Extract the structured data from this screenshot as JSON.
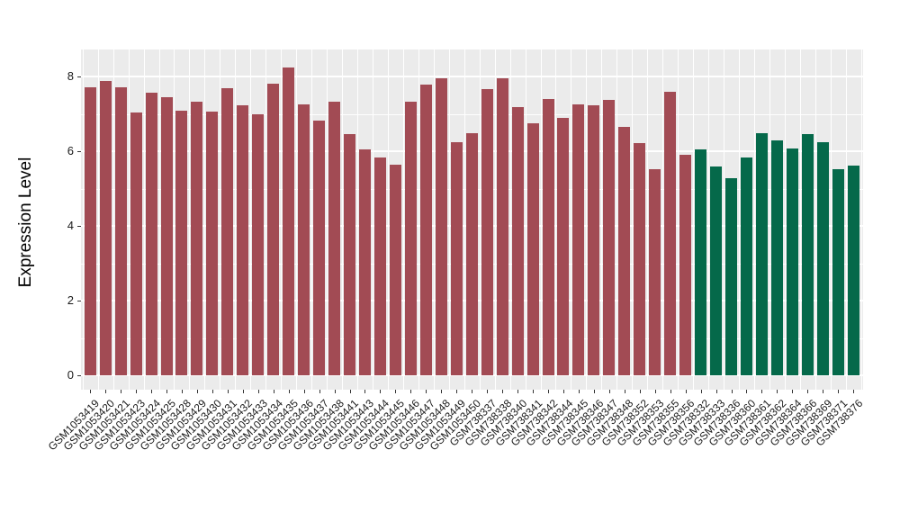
{
  "figure": {
    "title": "",
    "background_color": "#FFFFFF",
    "panel_background_color": "#EBEBEB",
    "gridline_color": "#FFFFFF",
    "axis_tick_color": "#333333",
    "axis_text_color": "#1A1A1A"
  },
  "chart_data": {
    "type": "bar",
    "title": "",
    "xlabel": "",
    "ylabel": "Expression Level",
    "ylim": [
      0,
      8.7
    ],
    "yticks": [
      0,
      2,
      4,
      6,
      8
    ],
    "grid": "white major gridlines at even values, minor at odd values, vertical lines between bars, on grey panel",
    "legend_position": "none",
    "group_colors": {
      "red": "#A24B54",
      "green": "#05694A"
    },
    "categories": [
      "GSM1053419",
      "GSM1053420",
      "GSM1053421",
      "GSM1053423",
      "GSM1053424",
      "GSM1053425",
      "GSM1053428",
      "GSM1053429",
      "GSM1053430",
      "GSM1053431",
      "GSM1053432",
      "GSM1053433",
      "GSM1053434",
      "GSM1053435",
      "GSM1053436",
      "GSM1053437",
      "GSM1053438",
      "GSM1053441",
      "GSM1053443",
      "GSM1053444",
      "GSM1053445",
      "GSM1053446",
      "GSM1053447",
      "GSM1053448",
      "GSM1053449",
      "GSM1053450",
      "GSM738337",
      "GSM738338",
      "GSM738340",
      "GSM738341",
      "GSM738342",
      "GSM738344",
      "GSM738345",
      "GSM738346",
      "GSM738347",
      "GSM738348",
      "GSM738352",
      "GSM738353",
      "GSM738355",
      "GSM738356",
      "GSM738332",
      "GSM738333",
      "GSM738336",
      "GSM738360",
      "GSM738361",
      "GSM738362",
      "GSM738364",
      "GSM738366",
      "GSM738369",
      "GSM738371",
      "GSM738376"
    ],
    "values": [
      7.72,
      7.87,
      7.7,
      7.04,
      7.56,
      7.45,
      7.09,
      7.32,
      7.06,
      7.68,
      7.23,
      7.0,
      7.8,
      8.25,
      7.25,
      6.81,
      7.33,
      6.46,
      6.05,
      5.83,
      5.65,
      7.32,
      7.79,
      7.96,
      6.23,
      6.47,
      7.66,
      7.94,
      7.18,
      6.74,
      7.4,
      6.89,
      7.25,
      7.22,
      7.38,
      6.66,
      6.21,
      5.53,
      7.6,
      5.91,
      6.05,
      5.59,
      5.27,
      5.83,
      6.47,
      6.29,
      6.07,
      6.45,
      6.25,
      5.51,
      5.61
    ],
    "bar_groups": [
      "red",
      "red",
      "red",
      "red",
      "red",
      "red",
      "red",
      "red",
      "red",
      "red",
      "red",
      "red",
      "red",
      "red",
      "red",
      "red",
      "red",
      "red",
      "red",
      "red",
      "red",
      "red",
      "red",
      "red",
      "red",
      "red",
      "red",
      "red",
      "red",
      "red",
      "red",
      "red",
      "red",
      "red",
      "red",
      "red",
      "red",
      "red",
      "red",
      "red",
      "green",
      "green",
      "green",
      "green",
      "green",
      "green",
      "green",
      "green",
      "green",
      "green",
      "green"
    ]
  }
}
